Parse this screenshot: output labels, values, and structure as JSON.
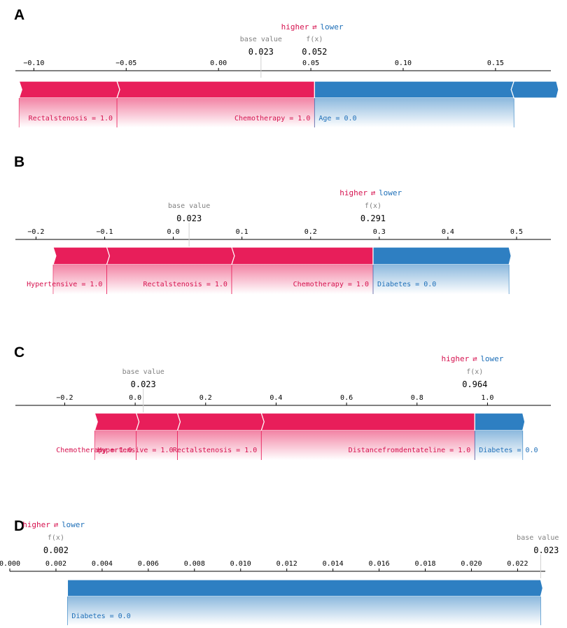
{
  "chart_data": [
    {
      "type": "force",
      "panel": "A",
      "base_value": 0.023,
      "fx": 0.052,
      "base_value_text": "0.023",
      "fx_text": "0.052",
      "base_value_label": "base value",
      "fx_label": "f(x)",
      "legend": {
        "higher": "higher",
        "lower": "lower"
      },
      "xlim": [
        -0.11,
        0.18
      ],
      "ticks": [
        -0.1,
        -0.05,
        0.0,
        0.05,
        0.1,
        0.15
      ],
      "tick_labels": [
        "−0.10",
        "−0.05",
        "0.00",
        "0.05",
        "0.10",
        "0.15"
      ],
      "features": [
        {
          "label": "Rectalstenosis = 1.0",
          "start": -0.108,
          "end": -0.055,
          "direction": "higher"
        },
        {
          "label": "Chemotherapy = 1.0",
          "start": -0.055,
          "end": 0.052,
          "direction": "higher"
        },
        {
          "label": "Age = 0.0",
          "start": 0.052,
          "end": 0.16,
          "direction": "lower"
        },
        {
          "label": "",
          "start": 0.16,
          "end": 0.183,
          "direction": "lower"
        }
      ]
    },
    {
      "type": "force",
      "panel": "B",
      "base_value": 0.023,
      "fx": 0.291,
      "base_value_text": "0.023",
      "fx_text": "0.291",
      "base_value_label": "base value",
      "fx_label": "f(x)",
      "legend": {
        "higher": "higher",
        "lower": "lower"
      },
      "xlim": [
        -0.23,
        0.55
      ],
      "ticks": [
        -0.2,
        -0.1,
        0.0,
        0.1,
        0.2,
        0.3,
        0.4,
        0.5
      ],
      "tick_labels": [
        "−0.2",
        "−0.1",
        "0.0",
        "0.1",
        "0.2",
        "0.3",
        "0.4",
        "0.5"
      ],
      "features": [
        {
          "label": "Hypertensive = 1.0",
          "start": -0.175,
          "end": -0.097,
          "direction": "higher"
        },
        {
          "label": "Rectalstenosis = 1.0",
          "start": -0.097,
          "end": 0.085,
          "direction": "higher"
        },
        {
          "label": "Chemotherapy = 1.0",
          "start": 0.085,
          "end": 0.291,
          "direction": "higher"
        },
        {
          "label": "Diabetes = 0.0",
          "start": 0.291,
          "end": 0.489,
          "direction": "lower"
        }
      ]
    },
    {
      "type": "force",
      "panel": "C",
      "base_value": 0.023,
      "fx": 0.964,
      "base_value_text": "0.023",
      "fx_text": "0.964",
      "base_value_label": "base value",
      "fx_label": "f(x)",
      "legend": {
        "higher": "higher",
        "lower": "lower"
      },
      "xlim": [
        -0.34,
        1.18
      ],
      "ticks": [
        -0.2,
        0.0,
        0.2,
        0.4,
        0.6,
        0.8,
        1.0
      ],
      "tick_labels": [
        "−0.2",
        "0.0",
        "0.2",
        "0.4",
        "0.6",
        "0.8",
        "1.0"
      ],
      "features": [
        {
          "label": "Chemotherapy = 1.0",
          "start": -0.115,
          "end": 0.003,
          "direction": "higher"
        },
        {
          "label": "Hypertensive = 1.0",
          "start": 0.003,
          "end": 0.12,
          "direction": "higher"
        },
        {
          "label": "Rectalstenosis = 1.0",
          "start": 0.12,
          "end": 0.358,
          "direction": "higher"
        },
        {
          "label": "Distancefromdentateline = 1.0",
          "start": 0.358,
          "end": 0.964,
          "direction": "higher"
        },
        {
          "label": "Diabetes = 0.0",
          "start": 0.964,
          "end": 1.1,
          "direction": "lower"
        }
      ]
    },
    {
      "type": "force",
      "panel": "D",
      "base_value": 0.023,
      "fx": 0.002,
      "base_value_text": "0.023",
      "fx_text": "0.002",
      "base_value_label": "base value",
      "fx_label": "f(x)",
      "legend": {
        "higher": "higher",
        "lower": "lower"
      },
      "xlim": [
        0.0,
        0.0232
      ],
      "ticks": [
        0.0,
        0.002,
        0.004,
        0.006,
        0.008,
        0.01,
        0.012,
        0.014,
        0.016,
        0.018,
        0.02,
        0.022
      ],
      "tick_labels": [
        "0.000",
        "0.002",
        "0.004",
        "0.006",
        "0.008",
        "0.010",
        "0.012",
        "0.014",
        "0.016",
        "0.018",
        "0.020",
        "0.022"
      ],
      "features": [
        {
          "label": "Diabetes = 0.0",
          "start": 0.0025,
          "end": 0.023,
          "direction": "lower"
        }
      ]
    }
  ],
  "colors": {
    "higher": "#e81e5a",
    "lower": "#2e7fc2",
    "axis": "#000000",
    "gray": "#888888"
  },
  "arrow_glyph": "⇄"
}
